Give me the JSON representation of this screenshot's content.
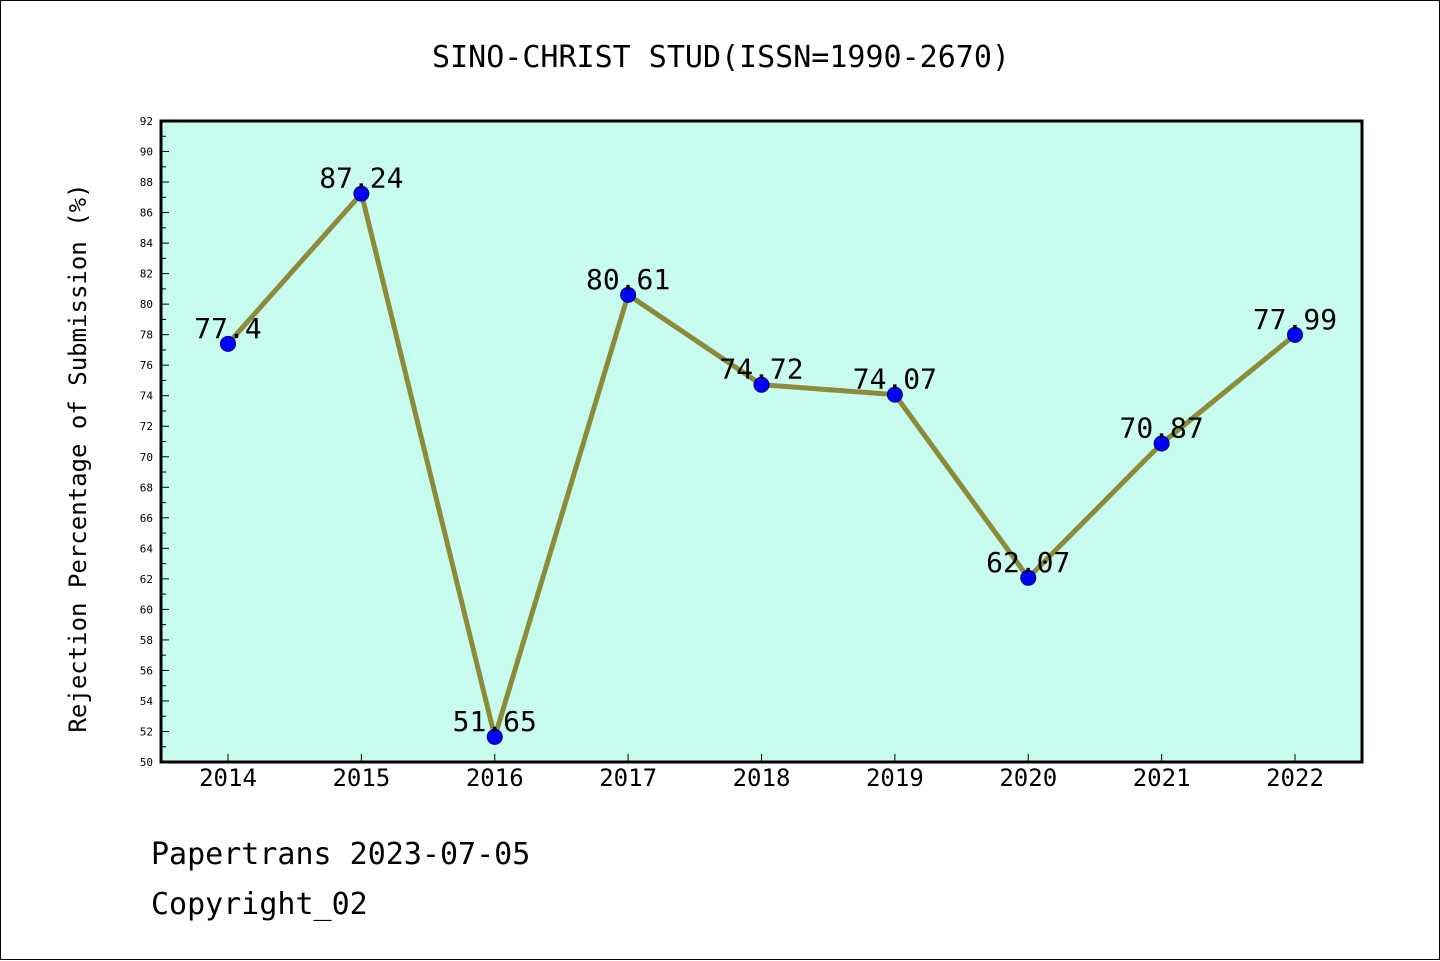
{
  "chart_data": {
    "type": "line",
    "title": "SINO-CHRIST STUD(ISSN=1990-2670)",
    "xlabel": "",
    "ylabel": "Rejection Percentage of Submission (%)",
    "categories": [
      "2014",
      "2015",
      "2016",
      "2017",
      "2018",
      "2019",
      "2020",
      "2021",
      "2022"
    ],
    "series": [
      {
        "values": [
          77.4,
          87.24,
          51.65,
          80.61,
          74.72,
          74.07,
          62.07,
          70.87,
          77.99
        ],
        "labels": [
          "77.4",
          "87.24",
          "51.65",
          "80.61",
          "74.72",
          "74.07",
          "62.07",
          "70.87",
          "77.99"
        ]
      }
    ],
    "ylim": [
      50,
      92
    ],
    "yticks": [
      "50",
      "52",
      "54",
      "56",
      "58",
      "60",
      "62",
      "64",
      "66",
      "68",
      "70",
      "72",
      "74",
      "76",
      "78",
      "80",
      "82",
      "84",
      "86",
      "88",
      "90",
      "92"
    ],
    "grid": false,
    "legend": "none",
    "colors": {
      "plot_background": "#c8fcef",
      "line": "#8b8b3a",
      "marker": "#0000ff"
    }
  },
  "footer": {
    "source": "Papertrans 2023-07-05",
    "copyright": "Copyright_02"
  }
}
